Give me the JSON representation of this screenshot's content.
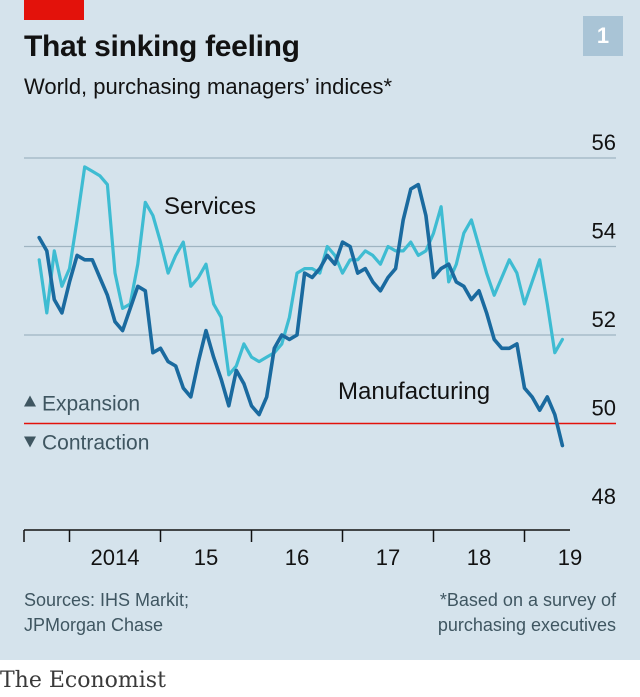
{
  "header": {
    "title": "That sinking feeling",
    "subtitle": "World, purchasing managers’ indices*",
    "chart_number": "1"
  },
  "footer": {
    "source_line1": "Sources: IHS Markit;",
    "source_line2": "JPMorgan Chase",
    "note_line1": "*Based on a survey of",
    "note_line2": "purchasing executives",
    "brand": "The Economist"
  },
  "colors": {
    "background": "#d5e3ec",
    "services": "#3ebcd2",
    "manufacturing": "#1a6a9f",
    "threshold": "#e3120b",
    "grid": "#9fb4c1",
    "text": "#121212",
    "muted": "#3f5661"
  },
  "chart_data": {
    "type": "line",
    "ylim": [
      48,
      56
    ],
    "yticks": [
      48,
      50,
      52,
      54,
      56
    ],
    "ytick_labels": [
      "48",
      "50",
      "52",
      "54",
      "56"
    ],
    "xlim": [
      2013.5,
      2019.5
    ],
    "xticks": [
      2014,
      2015,
      2016,
      2017,
      2018,
      2019
    ],
    "xtick_labels": [
      "2014",
      "15",
      "16",
      "17",
      "18",
      "19"
    ],
    "x_domain_start": 2013,
    "threshold": 50,
    "threshold_labels": {
      "above": "Expansion",
      "below": "Contraction"
    },
    "grid": true,
    "series": [
      {
        "name": "Services",
        "label": "Services",
        "x": [
          2013.667,
          2013.75,
          2013.833,
          2013.917,
          2014.0,
          2014.083,
          2014.167,
          2014.25,
          2014.333,
          2014.417,
          2014.5,
          2014.583,
          2014.667,
          2014.75,
          2014.833,
          2014.917,
          2015.0,
          2015.083,
          2015.167,
          2015.25,
          2015.333,
          2015.417,
          2015.5,
          2015.583,
          2015.667,
          2015.75,
          2015.833,
          2015.917,
          2016.0,
          2016.083,
          2016.167,
          2016.25,
          2016.333,
          2016.417,
          2016.5,
          2016.583,
          2016.667,
          2016.75,
          2016.833,
          2016.917,
          2017.0,
          2017.083,
          2017.167,
          2017.25,
          2017.333,
          2017.417,
          2017.5,
          2017.583,
          2017.667,
          2017.75,
          2017.833,
          2017.917,
          2018.0,
          2018.083,
          2018.167,
          2018.25,
          2018.333,
          2018.417,
          2018.5,
          2018.583,
          2018.667,
          2018.75,
          2018.833,
          2018.917,
          2019.0,
          2019.083,
          2019.167,
          2019.25,
          2019.333,
          2019.417
        ],
        "y": [
          53.7,
          52.5,
          53.9,
          53.1,
          53.5,
          54.6,
          55.8,
          55.7,
          55.6,
          55.4,
          53.4,
          52.6,
          52.7,
          53.6,
          55.0,
          54.7,
          54.1,
          53.4,
          53.8,
          54.1,
          53.1,
          53.3,
          53.6,
          52.7,
          52.4,
          51.1,
          51.3,
          51.8,
          51.5,
          51.4,
          51.5,
          51.6,
          51.8,
          52.4,
          53.4,
          53.5,
          53.5,
          53.4,
          54.0,
          53.8,
          53.4,
          53.7,
          53.7,
          53.9,
          53.8,
          53.6,
          54.0,
          53.9,
          53.9,
          54.1,
          53.8,
          53.9,
          54.3,
          54.9,
          53.2,
          53.6,
          54.3,
          54.6,
          54.0,
          53.4,
          52.9,
          53.3,
          53.7,
          53.4,
          52.7,
          53.2,
          53.7,
          52.7,
          51.6,
          51.9
        ]
      },
      {
        "name": "Manufacturing",
        "label": "Manufacturing",
        "x": [
          2013.667,
          2013.75,
          2013.833,
          2013.917,
          2014.0,
          2014.083,
          2014.167,
          2014.25,
          2014.333,
          2014.417,
          2014.5,
          2014.583,
          2014.667,
          2014.75,
          2014.833,
          2014.917,
          2015.0,
          2015.083,
          2015.167,
          2015.25,
          2015.333,
          2015.417,
          2015.5,
          2015.583,
          2015.667,
          2015.75,
          2015.833,
          2015.917,
          2016.0,
          2016.083,
          2016.167,
          2016.25,
          2016.333,
          2016.417,
          2016.5,
          2016.583,
          2016.667,
          2016.75,
          2016.833,
          2016.917,
          2017.0,
          2017.083,
          2017.167,
          2017.25,
          2017.333,
          2017.417,
          2017.5,
          2017.583,
          2017.667,
          2017.75,
          2017.833,
          2017.917,
          2018.0,
          2018.083,
          2018.167,
          2018.25,
          2018.333,
          2018.417,
          2018.5,
          2018.583,
          2018.667,
          2018.75,
          2018.833,
          2018.917,
          2019.0,
          2019.083,
          2019.167,
          2019.25,
          2019.333,
          2019.417
        ],
        "y": [
          54.2,
          53.9,
          52.8,
          52.5,
          53.2,
          53.8,
          53.7,
          53.7,
          53.3,
          52.9,
          52.3,
          52.1,
          52.6,
          53.1,
          53.0,
          51.6,
          51.7,
          51.4,
          51.3,
          50.8,
          50.6,
          51.4,
          52.1,
          51.5,
          51.0,
          50.4,
          51.2,
          50.9,
          50.4,
          50.2,
          50.6,
          51.7,
          52.0,
          51.9,
          52.0,
          53.4,
          53.3,
          53.5,
          53.8,
          53.6,
          54.1,
          54.0,
          53.4,
          53.5,
          53.2,
          53.0,
          53.3,
          53.5,
          54.6,
          55.3,
          55.4,
          54.7,
          53.3,
          53.5,
          53.6,
          53.2,
          53.1,
          52.8,
          53.0,
          52.5,
          51.9,
          51.7,
          51.7,
          51.8,
          50.8,
          50.6,
          50.3,
          50.6,
          50.2,
          49.5
        ]
      }
    ]
  }
}
